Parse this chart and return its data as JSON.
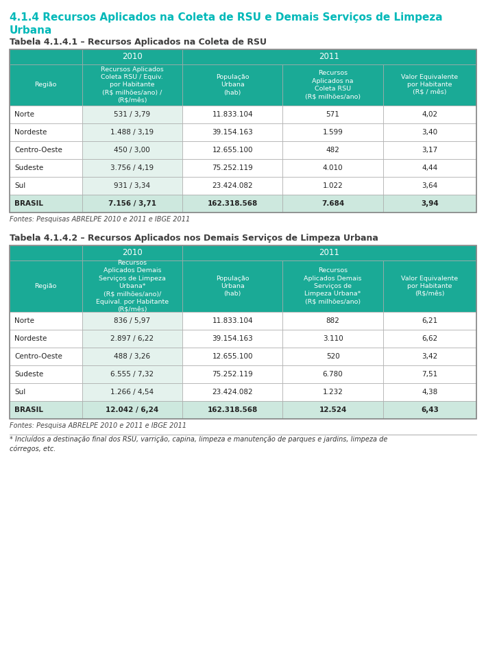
{
  "page_title_line1": "4.1.4 Recursos Aplicados na Coleta de RSU e Demais Serviços de Limpeza",
  "page_title_line2": "Urbana",
  "page_title_color": "#00b8b8",
  "background_color": "#ffffff",
  "table1": {
    "title": "Tabela 4.1.4.1 – Recursos Aplicados na Coleta de RSU",
    "title_color": "#3d3d3d",
    "header_bg": "#1aaa96",
    "header_text_color": "#ffffff",
    "row_bg_light": "#e4f2ed",
    "row_bg_white": "#ffffff",
    "brasil_row_bg": "#cde8de",
    "border_color": "#aaaaaa",
    "col_headers": [
      "Região",
      "Recursos Aplicados\nColeta RSU / Equiv.\npor Habitante\n(R$ milhões/ano) /\n(R$/mês)",
      "População\nUrbana\n(hab)",
      "Recursos\nAplicados na\nColeta RSU\n(R$ milhões/ano)",
      "Valor Equivalente\npor Habitante\n(R$ / mês)"
    ],
    "rows": [
      [
        "Norte",
        "531 / 3,79",
        "11.833.104",
        "571",
        "4,02"
      ],
      [
        "Nordeste",
        "1.488 / 3,19",
        "39.154.163",
        "1.599",
        "3,40"
      ],
      [
        "Centro-Oeste",
        "450 / 3,00",
        "12.655.100",
        "482",
        "3,17"
      ],
      [
        "Sudeste",
        "3.756 / 4,19",
        "75.252.119",
        "4.010",
        "4,44"
      ],
      [
        "Sul",
        "931 / 3,34",
        "23.424.082",
        "1.022",
        "3,64"
      ],
      [
        "BRASIL",
        "7.156 / 3,71",
        "162.318.568",
        "7.684",
        "3,94"
      ]
    ],
    "fonte": "Fontes: Pesquisas ABRELPE 2010 e 2011 e IBGE 2011"
  },
  "table2": {
    "title": "Tabela 4.1.4.2 – Recursos Aplicados nos Demais Serviços de Limpeza Urbana",
    "title_color": "#3d3d3d",
    "header_bg": "#1aaa96",
    "header_text_color": "#ffffff",
    "row_bg_light": "#e4f2ed",
    "row_bg_white": "#ffffff",
    "brasil_row_bg": "#cde8de",
    "border_color": "#aaaaaa",
    "col_headers": [
      "Região",
      "Recursos\nAplicados Demais\nServiços de Limpeza\nUrbana*\n(R$ milhões/ano)/\nEquival. por Habitante\n(R$/mês)",
      "População\nUrbana\n(hab)",
      "Recursos\nAplicados Demais\nServiços de\nLimpeza Urbana*\n(R$ milhões/ano)",
      "Valor Equivalente\npor Habitante\n(R$/mês)"
    ],
    "rows": [
      [
        "Norte",
        "836 / 5,97",
        "11.833.104",
        "882",
        "6,21"
      ],
      [
        "Nordeste",
        "2.897 / 6,22",
        "39.154.163",
        "3.110",
        "6,62"
      ],
      [
        "Centro-Oeste",
        "488 / 3,26",
        "12.655.100",
        "520",
        "3,42"
      ],
      [
        "Sudeste",
        "6.555 / 7,32",
        "75.252.119",
        "6.780",
        "7,51"
      ],
      [
        "Sul",
        "1.266 / 4,54",
        "23.424.082",
        "1.232",
        "4,38"
      ],
      [
        "BRASIL",
        "12.042 / 6,24",
        "162.318.568",
        "12.524",
        "6,43"
      ]
    ],
    "fonte": "Fontes: Pesquisa ABRELPE 2010 e 2011 e IBGE 2011"
  },
  "footnote": "* Incluídos a destinação final dos RSU, varrição, capina, limpeza e manutenção de parques e jardins, limpeza de\ncórregos, etc."
}
